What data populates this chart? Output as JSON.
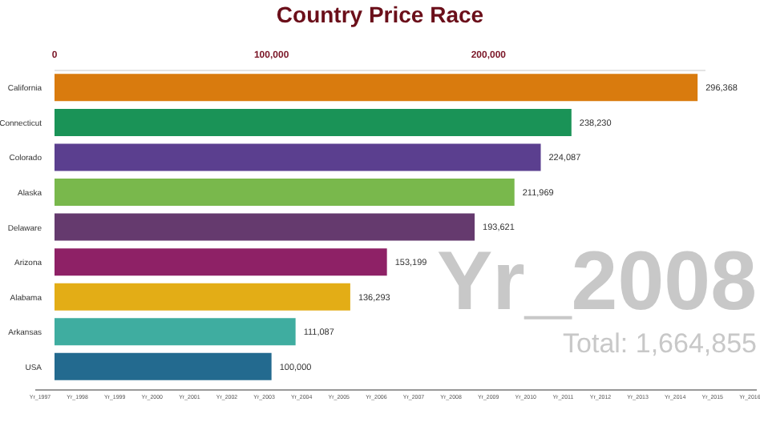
{
  "chart_data": {
    "type": "bar",
    "orientation": "horizontal",
    "title": "Country Price Race",
    "categories": [
      "California",
      "Connecticut",
      "Colorado",
      "Alaska",
      "Delaware",
      "Arizona",
      "Alabama",
      "Arkansas",
      "USA"
    ],
    "values": [
      296368,
      238230,
      224087,
      211969,
      193621,
      153199,
      136293,
      111087,
      100000
    ],
    "colors": [
      "#d97b0e",
      "#1a9357",
      "#5b3f8f",
      "#79b84c",
      "#653a6e",
      "#8e2166",
      "#e3ad16",
      "#3fada0",
      "#236a8f"
    ],
    "xlim": [
      0,
      300000
    ],
    "xticks": [
      {
        "value": 0,
        "label": "0"
      },
      {
        "value": 100000,
        "label": "100,000"
      },
      {
        "value": 200000,
        "label": "200,000"
      }
    ],
    "value_labels": [
      "296,368",
      "238,230",
      "224,087",
      "211,969",
      "193,621",
      "153,199",
      "136,293",
      "111,087",
      "100,000"
    ],
    "annotations": [
      "Yr_2008",
      "Total: 1,664,855",
      "Yr_1997",
      "Yr_1998",
      "Yr_1999",
      "Yr_2000",
      "Yr_2001",
      "Yr_2002",
      "Yr_2003",
      "Yr_2004",
      "Yr_2005",
      "Yr_2006",
      "Yr_2007",
      "Yr_2008",
      "Yr_2009",
      "Yr_2010",
      "Yr_2011",
      "Yr_2012",
      "Yr_2013",
      "Yr_2014",
      "Yr_2015",
      "Yr_2016"
    ]
  }
}
